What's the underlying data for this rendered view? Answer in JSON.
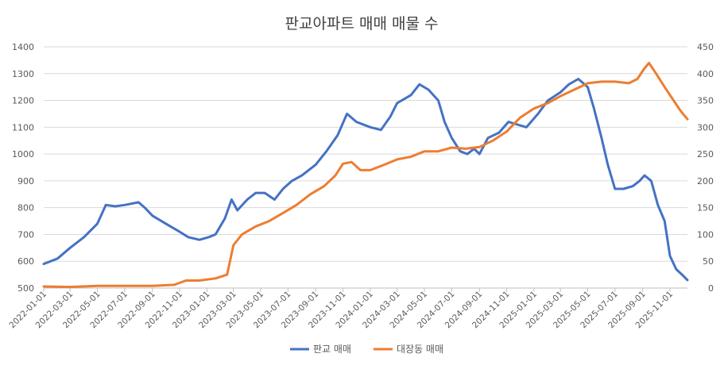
{
  "chart_data": {
    "type": "line",
    "title": "판교아파트 매매 매물 수",
    "xlabel": "",
    "ylabel": "",
    "y2label": "",
    "ylim": [
      500,
      1400
    ],
    "y2lim": [
      0,
      450
    ],
    "yticks": [
      500,
      600,
      700,
      800,
      900,
      1000,
      1100,
      1200,
      1300,
      1400
    ],
    "y2ticks": [
      0,
      50,
      100,
      150,
      200,
      250,
      300,
      350,
      400,
      450
    ],
    "xlim": [
      "2022-01-01",
      "2025-12-10"
    ],
    "xticks": [
      "2022-01-01",
      "2022-03-01",
      "2022-05-01",
      "2022-07-01",
      "2022-09-01",
      "2022-11-01",
      "2023-01-01",
      "2023-03-01",
      "2023-05-01",
      "2023-07-01",
      "2023-09-01",
      "2023-11-01",
      "2024-01-01",
      "2024-03-01",
      "2024-05-01",
      "2024-07-01",
      "2024-09-01",
      "2024-11-01",
      "2025-01-01",
      "2025-03-01",
      "2025-05-01",
      "2025-07-01",
      "2025-09-01",
      "2025-11-01"
    ],
    "legend_position": "bottom",
    "grid": true,
    "series": [
      {
        "name": "판교 매매",
        "axis": "left",
        "color": "#4472c4",
        "points": [
          [
            "2022-01-01",
            590
          ],
          [
            "2022-02-01",
            610
          ],
          [
            "2022-03-01",
            650
          ],
          [
            "2022-04-01",
            690
          ],
          [
            "2022-05-01",
            740
          ],
          [
            "2022-05-20",
            810
          ],
          [
            "2022-06-10",
            805
          ],
          [
            "2022-07-01",
            810
          ],
          [
            "2022-08-01",
            820
          ],
          [
            "2022-08-15",
            800
          ],
          [
            "2022-09-01",
            770
          ],
          [
            "2022-10-01",
            740
          ],
          [
            "2022-11-01",
            710
          ],
          [
            "2022-11-20",
            690
          ],
          [
            "2022-12-15",
            680
          ],
          [
            "2023-01-05",
            690
          ],
          [
            "2023-01-20",
            700
          ],
          [
            "2023-02-10",
            760
          ],
          [
            "2023-02-25",
            830
          ],
          [
            "2023-03-10",
            790
          ],
          [
            "2023-04-01",
            830
          ],
          [
            "2023-04-20",
            855
          ],
          [
            "2023-05-10",
            855
          ],
          [
            "2023-06-01",
            830
          ],
          [
            "2023-06-20",
            870
          ],
          [
            "2023-07-10",
            900
          ],
          [
            "2023-08-01",
            920
          ],
          [
            "2023-09-01",
            960
          ],
          [
            "2023-09-25",
            1010
          ],
          [
            "2023-10-20",
            1070
          ],
          [
            "2023-11-10",
            1150
          ],
          [
            "2023-12-01",
            1120
          ],
          [
            "2024-01-01",
            1100
          ],
          [
            "2024-01-25",
            1090
          ],
          [
            "2024-02-15",
            1140
          ],
          [
            "2024-03-01",
            1190
          ],
          [
            "2024-04-01",
            1220
          ],
          [
            "2024-04-20",
            1260
          ],
          [
            "2024-05-10",
            1240
          ],
          [
            "2024-06-01",
            1200
          ],
          [
            "2024-06-15",
            1120
          ],
          [
            "2024-07-01",
            1060
          ],
          [
            "2024-07-20",
            1010
          ],
          [
            "2024-08-05",
            1000
          ],
          [
            "2024-08-20",
            1020
          ],
          [
            "2024-09-01",
            1000
          ],
          [
            "2024-09-20",
            1060
          ],
          [
            "2024-10-15",
            1080
          ],
          [
            "2024-11-05",
            1120
          ],
          [
            "2024-11-25",
            1110
          ],
          [
            "2024-12-15",
            1100
          ],
          [
            "2025-01-10",
            1150
          ],
          [
            "2025-02-01",
            1200
          ],
          [
            "2025-03-01",
            1230
          ],
          [
            "2025-03-20",
            1260
          ],
          [
            "2025-04-10",
            1280
          ],
          [
            "2025-05-01",
            1250
          ],
          [
            "2025-05-15",
            1170
          ],
          [
            "2025-06-01",
            1060
          ],
          [
            "2025-06-15",
            960
          ],
          [
            "2025-07-01",
            870
          ],
          [
            "2025-07-20",
            870
          ],
          [
            "2025-08-10",
            880
          ],
          [
            "2025-08-25",
            900
          ],
          [
            "2025-09-05",
            920
          ],
          [
            "2025-09-20",
            900
          ],
          [
            "2025-10-05",
            810
          ],
          [
            "2025-10-20",
            750
          ],
          [
            "2025-11-01",
            620
          ],
          [
            "2025-11-15",
            570
          ],
          [
            "2025-11-28",
            550
          ],
          [
            "2025-12-10",
            530
          ]
        ]
      },
      {
        "name": "대장동 매매",
        "axis": "right",
        "color": "#ed7d31",
        "points": [
          [
            "2022-01-01",
            3
          ],
          [
            "2022-03-01",
            2
          ],
          [
            "2022-05-01",
            4
          ],
          [
            "2022-07-01",
            4
          ],
          [
            "2022-09-01",
            4
          ],
          [
            "2022-10-20",
            6
          ],
          [
            "2022-11-15",
            14
          ],
          [
            "2022-12-15",
            14
          ],
          [
            "2023-01-20",
            18
          ],
          [
            "2023-02-15",
            25
          ],
          [
            "2023-03-01",
            80
          ],
          [
            "2023-03-20",
            100
          ],
          [
            "2023-04-20",
            115
          ],
          [
            "2023-05-20",
            125
          ],
          [
            "2023-06-20",
            140
          ],
          [
            "2023-07-20",
            155
          ],
          [
            "2023-08-20",
            175
          ],
          [
            "2023-09-20",
            190
          ],
          [
            "2023-10-15",
            210
          ],
          [
            "2023-11-01",
            232
          ],
          [
            "2023-11-20",
            235
          ],
          [
            "2023-12-10",
            220
          ],
          [
            "2024-01-01",
            220
          ],
          [
            "2024-02-01",
            230
          ],
          [
            "2024-03-01",
            240
          ],
          [
            "2024-04-01",
            245
          ],
          [
            "2024-05-01",
            255
          ],
          [
            "2024-06-01",
            255
          ],
          [
            "2024-07-01",
            262
          ],
          [
            "2024-08-01",
            260
          ],
          [
            "2024-09-01",
            263
          ],
          [
            "2024-10-01",
            275
          ],
          [
            "2024-11-01",
            292
          ],
          [
            "2024-12-01",
            318
          ],
          [
            "2025-01-01",
            335
          ],
          [
            "2025-02-01",
            345
          ],
          [
            "2025-03-01",
            358
          ],
          [
            "2025-04-01",
            370
          ],
          [
            "2025-05-01",
            382
          ],
          [
            "2025-06-01",
            385
          ],
          [
            "2025-07-01",
            385
          ],
          [
            "2025-08-01",
            382
          ],
          [
            "2025-08-20",
            390
          ],
          [
            "2025-09-05",
            410
          ],
          [
            "2025-09-15",
            420
          ],
          [
            "2025-10-01",
            400
          ],
          [
            "2025-10-20",
            375
          ],
          [
            "2025-11-05",
            355
          ],
          [
            "2025-11-25",
            330
          ],
          [
            "2025-12-10",
            315
          ]
        ]
      }
    ]
  }
}
